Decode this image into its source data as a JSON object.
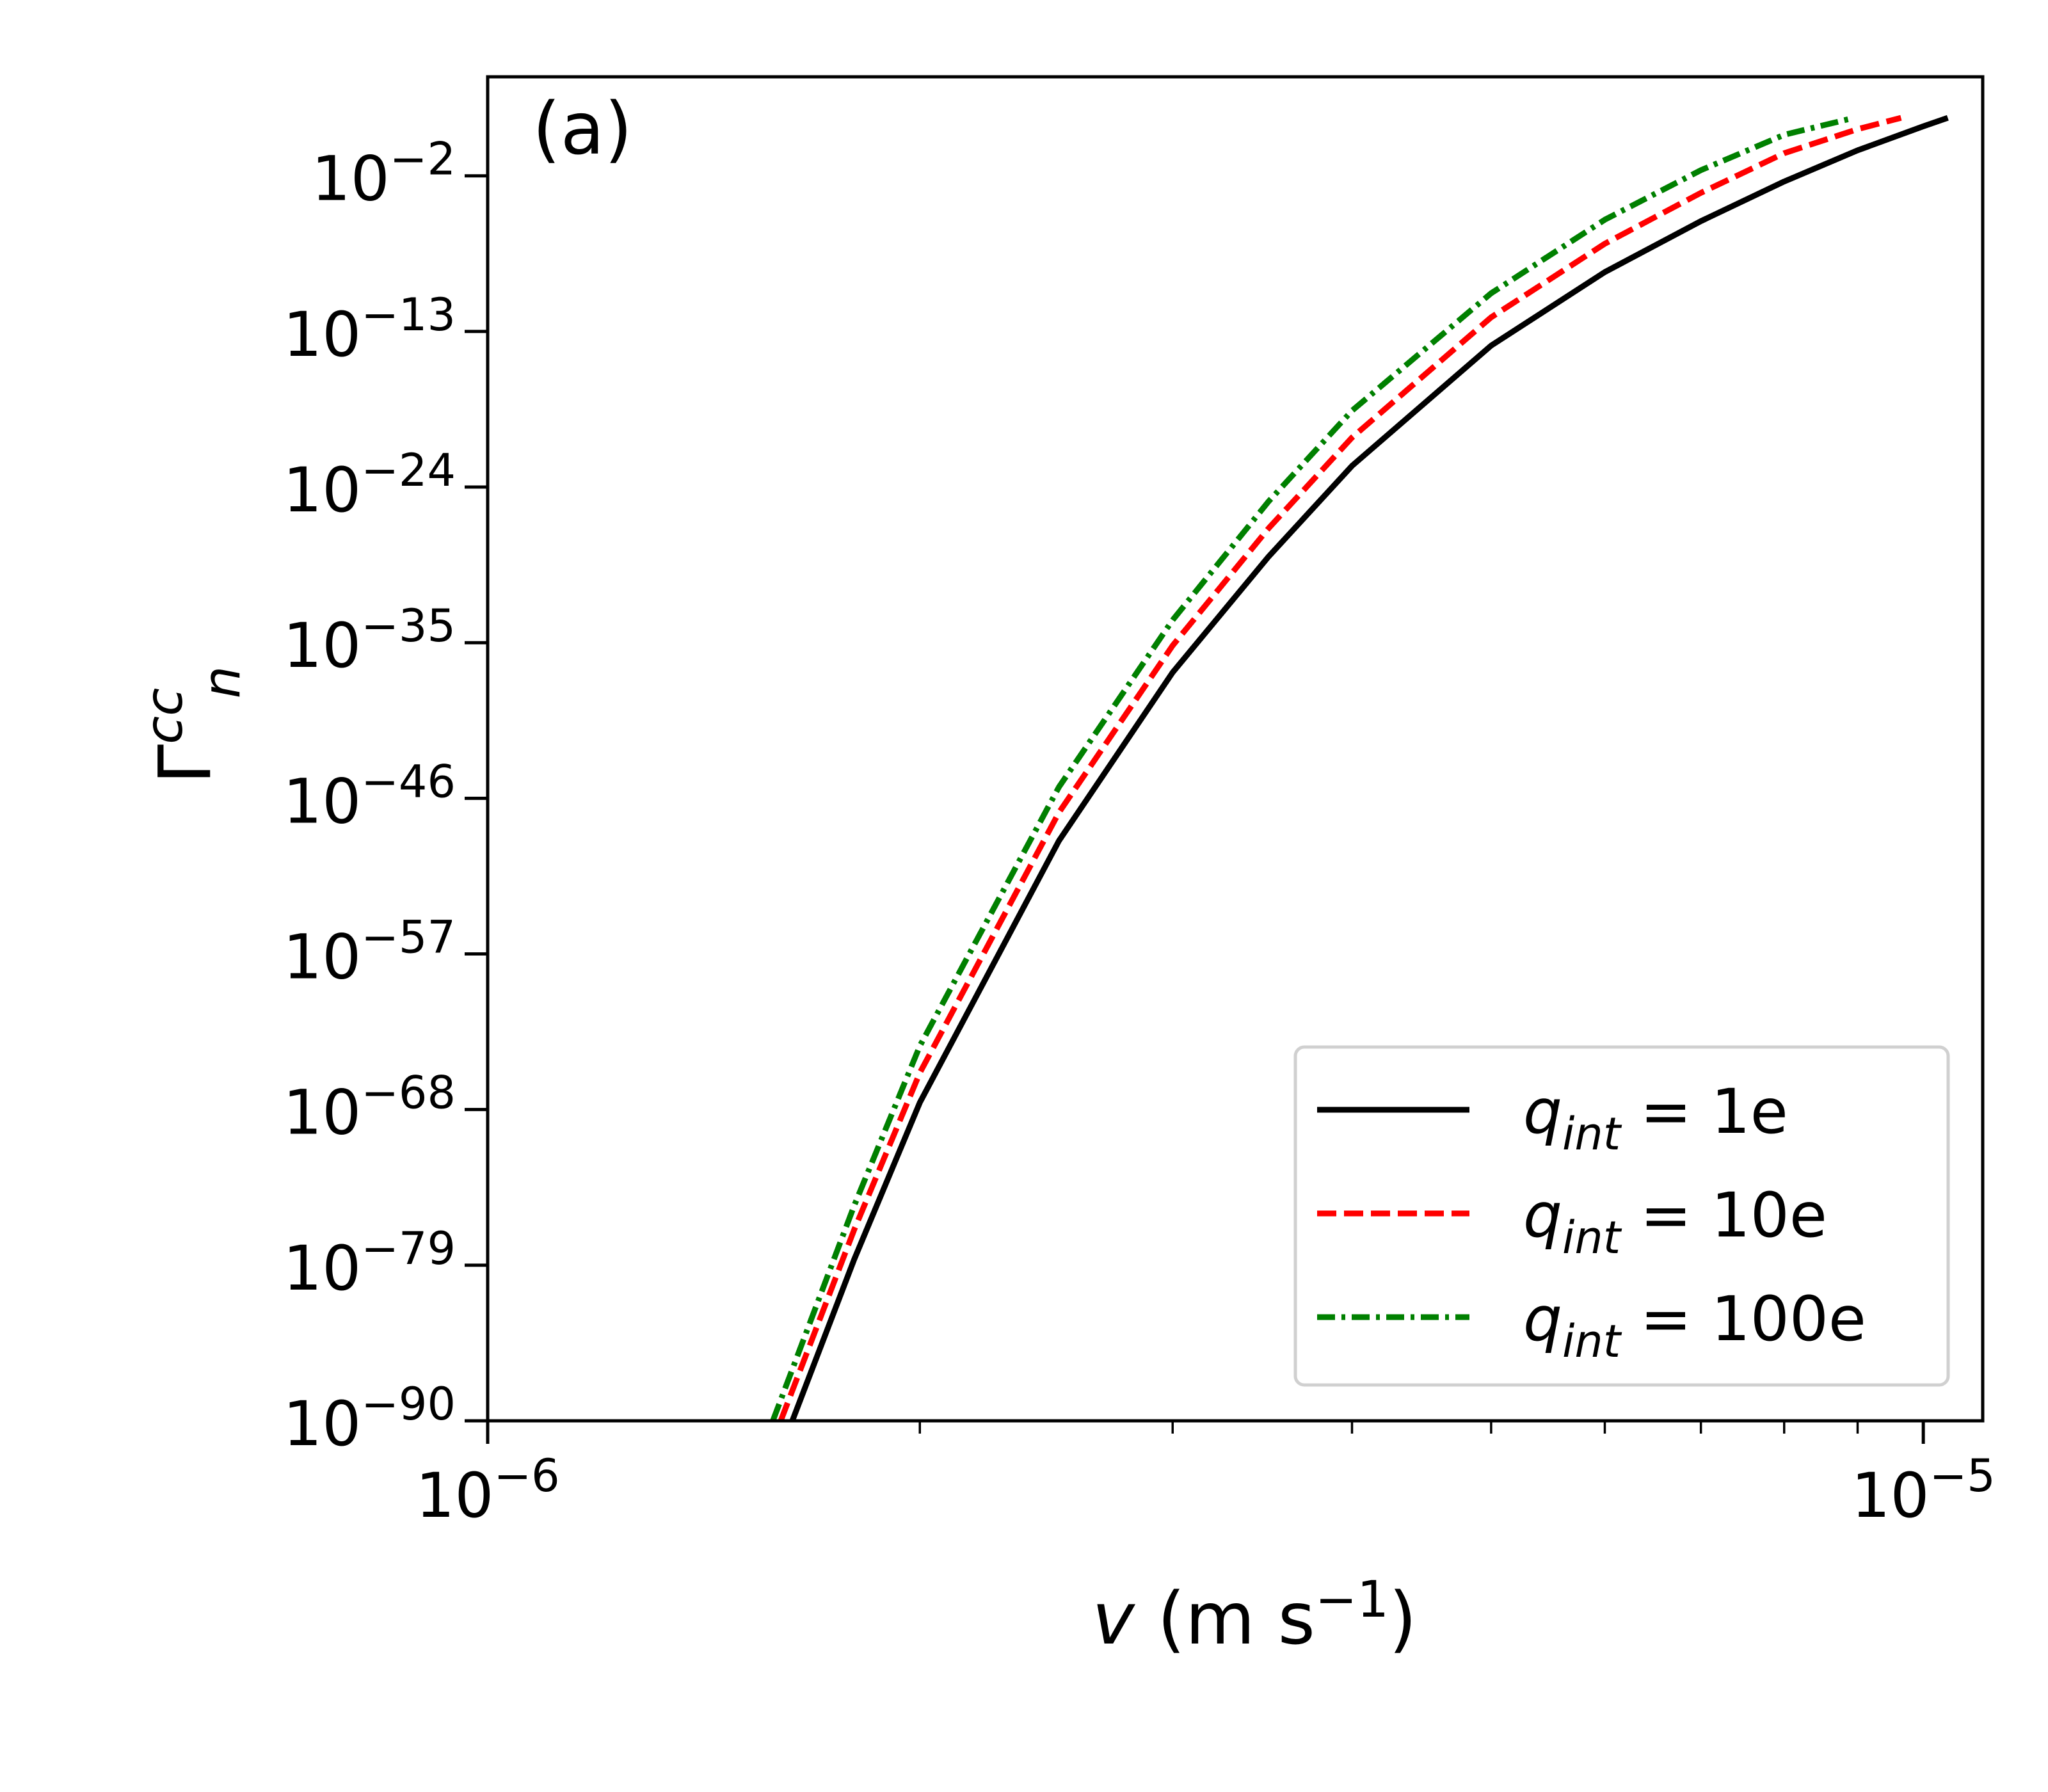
{
  "chart_data": {
    "type": "line",
    "panel_label": "(a)",
    "xlabel": {
      "symbol": "v",
      "unit_base": "(m s",
      "unit_exp": "−1",
      "unit_close": ")"
    },
    "ylabel": {
      "base": "Γ",
      "sup": "cc",
      "sub": "n"
    },
    "x_scale": "log",
    "y_scale": "log",
    "xlim": [
      1e-06,
      1.1e-05
    ],
    "ylim_exponent": [
      -90,
      5
    ],
    "x_ticks": [
      {
        "exp": -6,
        "base": "10",
        "sup": "−6"
      },
      {
        "exp": -5,
        "base": "10",
        "sup": "−5"
      }
    ],
    "y_ticks": [
      {
        "exp": -2,
        "base": "10",
        "sup": "−2"
      },
      {
        "exp": -13,
        "base": "10",
        "sup": "−13"
      },
      {
        "exp": -24,
        "base": "10",
        "sup": "−24"
      },
      {
        "exp": -35,
        "base": "10",
        "sup": "−35"
      },
      {
        "exp": -46,
        "base": "10",
        "sup": "−46"
      },
      {
        "exp": -57,
        "base": "10",
        "sup": "−57"
      },
      {
        "exp": -68,
        "base": "10",
        "sup": "−68"
      },
      {
        "exp": -79,
        "base": "10",
        "sup": "−79"
      },
      {
        "exp": -90,
        "base": "10",
        "sup": "−90"
      }
    ],
    "legend": {
      "position": "lower-right"
    },
    "series": [
      {
        "name": "q_int = 1e",
        "label_q": "q",
        "label_sub": "int",
        "label_rest": " = 1e",
        "color": "#000000",
        "style": "solid",
        "x": [
          1.63e-06,
          1.8e-06,
          2e-06,
          2.5e-06,
          3e-06,
          3.5e-06,
          4e-06,
          5e-06,
          6e-06,
          7e-06,
          8e-06,
          9e-06,
          1e-05,
          1.04e-05
        ],
        "y_exponent": [
          -90,
          -78.6,
          -67.5,
          -49.0,
          -37.1,
          -28.9,
          -22.5,
          -14.0,
          -8.8,
          -5.2,
          -2.4,
          -0.2,
          1.5,
          2.1
        ]
      },
      {
        "name": "q_int = 10e",
        "label_q": "q",
        "label_sub": "int",
        "label_rest": " = 10e",
        "color": "#ff0000",
        "style": "dashed",
        "x": [
          1.6e-06,
          1.8e-06,
          2e-06,
          2.5e-06,
          3e-06,
          3.5e-06,
          4e-06,
          5e-06,
          6e-06,
          7e-06,
          8e-06,
          9e-06,
          9.65e-06
        ],
        "y_exponent": [
          -90,
          -76.5,
          -65.4,
          -47.0,
          -35.2,
          -26.9,
          -20.5,
          -12.0,
          -6.8,
          -3.2,
          -0.4,
          1.3,
          2.1
        ]
      },
      {
        "name": "q_int = 100e",
        "label_q": "q",
        "label_sub": "int",
        "label_rest": " = 100e",
        "color": "#008000",
        "style": "dashdot",
        "x": [
          1.58e-06,
          1.8e-06,
          2e-06,
          2.5e-06,
          3e-06,
          3.5e-06,
          4e-06,
          5e-06,
          6e-06,
          7e-06,
          8e-06,
          8.95e-06
        ],
        "y_exponent": [
          -90,
          -74.8,
          -63.5,
          -45.2,
          -33.4,
          -25.0,
          -18.6,
          -10.3,
          -5.1,
          -1.6,
          0.9,
          2.1
        ]
      }
    ]
  }
}
